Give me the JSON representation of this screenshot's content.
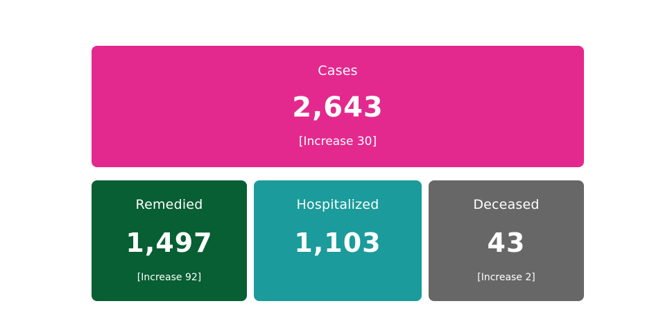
{
  "cards": {
    "cases": {
      "label": "Cases",
      "value": "2,643",
      "note": "[Increase 30]",
      "color": "#e3298d"
    },
    "remedied": {
      "label": "Remedied",
      "value": "1,497",
      "note": "[Increase 92]",
      "color": "#075f33"
    },
    "hospitalized": {
      "label": "Hospitalized",
      "value": "1,103",
      "color": "#1b9b9b"
    },
    "deceased": {
      "label": "Deceased",
      "value": "43",
      "note": "[Increase 2]",
      "color": "#676767"
    }
  }
}
